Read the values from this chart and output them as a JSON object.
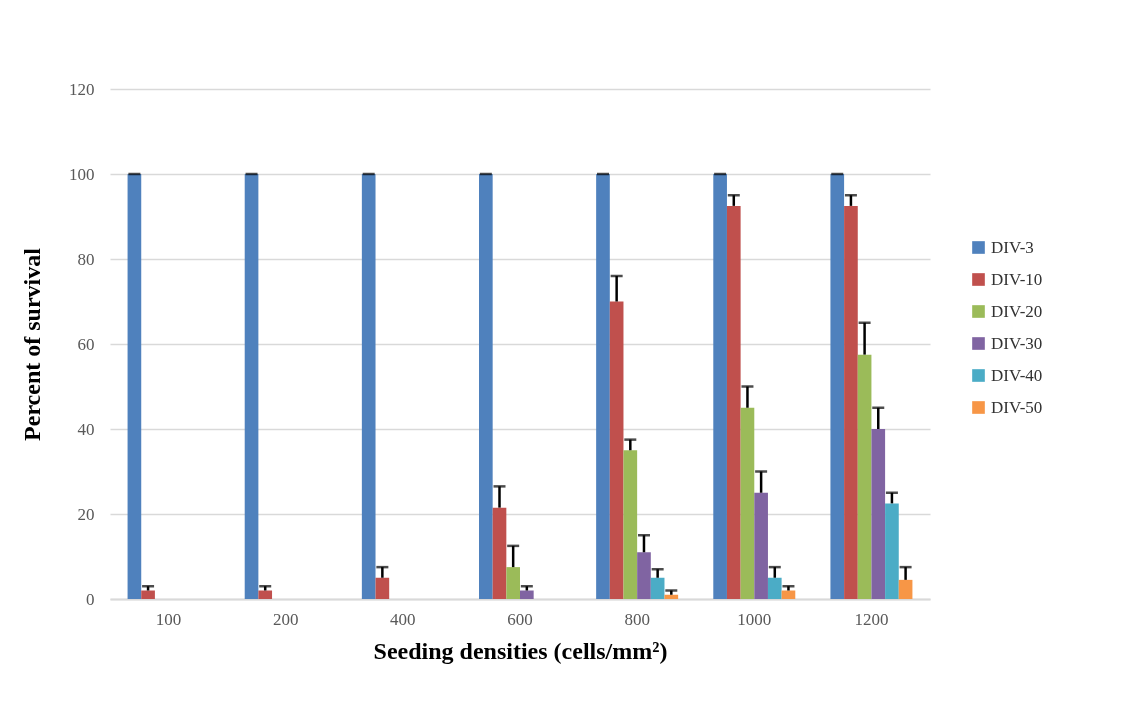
{
  "chart_data": {
    "type": "bar",
    "xlabel": "Seeding densities (cells/mm²)",
    "ylabel": "Percent of survival",
    "categories": [
      "100",
      "200",
      "400",
      "600",
      "800",
      "1000",
      "1200"
    ],
    "series": [
      {
        "name": "DIV-3",
        "color": "#4f81bd",
        "values": [
          100,
          100,
          100,
          100,
          100,
          100,
          100
        ],
        "errors": [
          0,
          0,
          0,
          0,
          0,
          0,
          0
        ]
      },
      {
        "name": "DIV-10",
        "color": "#c0504d",
        "values": [
          2,
          2,
          5,
          21.5,
          70,
          92.5,
          92.5
        ],
        "errors": [
          [
            2,
            3
          ],
          [
            2,
            3
          ],
          [
            5,
            7.5
          ],
          [
            21.5,
            26.5
          ],
          [
            70,
            76
          ],
          [
            92.5,
            95
          ],
          [
            92.5,
            95
          ]
        ]
      },
      {
        "name": "DIV-20",
        "color": "#9bbb59",
        "values": [
          null,
          null,
          null,
          7.5,
          35,
          45,
          57.5
        ],
        "errors": [
          null,
          null,
          null,
          [
            7.5,
            12.5
          ],
          [
            35,
            37.5
          ],
          [
            45,
            50
          ],
          [
            57.5,
            65
          ]
        ]
      },
      {
        "name": "DIV-30",
        "color": "#8064a2",
        "values": [
          null,
          null,
          null,
          2,
          11,
          25,
          40
        ],
        "errors": [
          null,
          null,
          null,
          [
            2,
            3
          ],
          [
            11,
            15
          ],
          [
            25,
            30
          ],
          [
            40,
            45
          ]
        ]
      },
      {
        "name": "DIV-40",
        "color": "#4bacc6",
        "values": [
          null,
          null,
          null,
          null,
          5,
          5,
          22.5
        ],
        "errors": [
          null,
          null,
          null,
          null,
          [
            5,
            7
          ],
          [
            5,
            7.5
          ],
          [
            22.5,
            25
          ]
        ]
      },
      {
        "name": "DIV-50",
        "color": "#f79646",
        "values": [
          null,
          null,
          null,
          null,
          1,
          2,
          4.5
        ],
        "errors": [
          null,
          null,
          null,
          null,
          [
            1,
            2
          ],
          [
            2,
            3
          ],
          [
            4.5,
            7.5
          ]
        ]
      }
    ],
    "ylim": [
      0,
      120
    ],
    "yticks": [
      0,
      20,
      40,
      60,
      80,
      100,
      120
    ],
    "grid": "y",
    "legend": "right"
  }
}
